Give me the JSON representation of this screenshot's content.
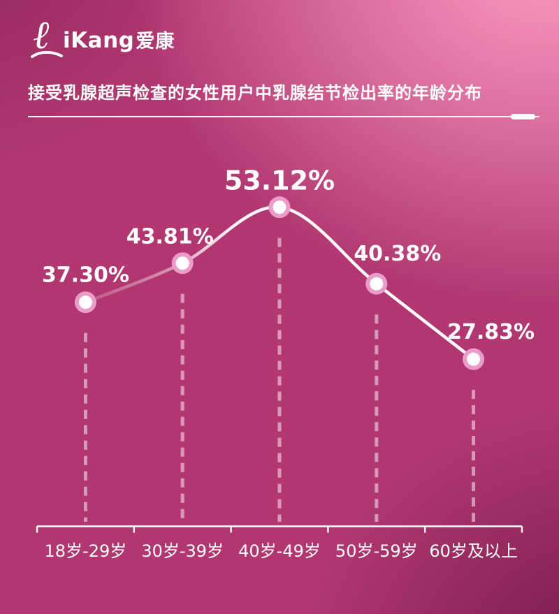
{
  "brand": {
    "latin": "iKang",
    "cjk": "爱康",
    "icon": "pink-ribbon-icon"
  },
  "title": {
    "text": "接受乳腺超声检查的女性用户中乳腺结节检出率的年龄分布"
  },
  "chart_data": {
    "type": "line",
    "title": "接受乳腺超声检查的女性用户中乳腺结节检出率的年龄分布",
    "categories": [
      "18岁-29岁",
      "30岁-39岁",
      "40岁-49岁",
      "50岁-59岁",
      "60岁及以上"
    ],
    "values": [
      37.3,
      43.81,
      53.12,
      40.38,
      27.83
    ],
    "value_labels": [
      "37.30%",
      "43.81%",
      "53.12%",
      "40.38%",
      "27.83%"
    ],
    "emphasized_index": 2,
    "xlabel": "",
    "ylabel": "",
    "ylim": [
      0,
      64
    ],
    "grid": false,
    "legend": null,
    "marker": "circle-with-ring",
    "drop_lines": "dashed",
    "line_color": "#ffffff",
    "marker_fill": "#ffffff",
    "marker_ring": "#eb9cc8",
    "axis_color": "#ffffff",
    "label_color": "#ffffff"
  },
  "style": {
    "background_base": "#b23770",
    "background_highlight_tr": "#f79cc4",
    "background_shadow_br": "#40042a",
    "background_shadow_tl": "#540a36",
    "text_color": "#ffffff"
  }
}
